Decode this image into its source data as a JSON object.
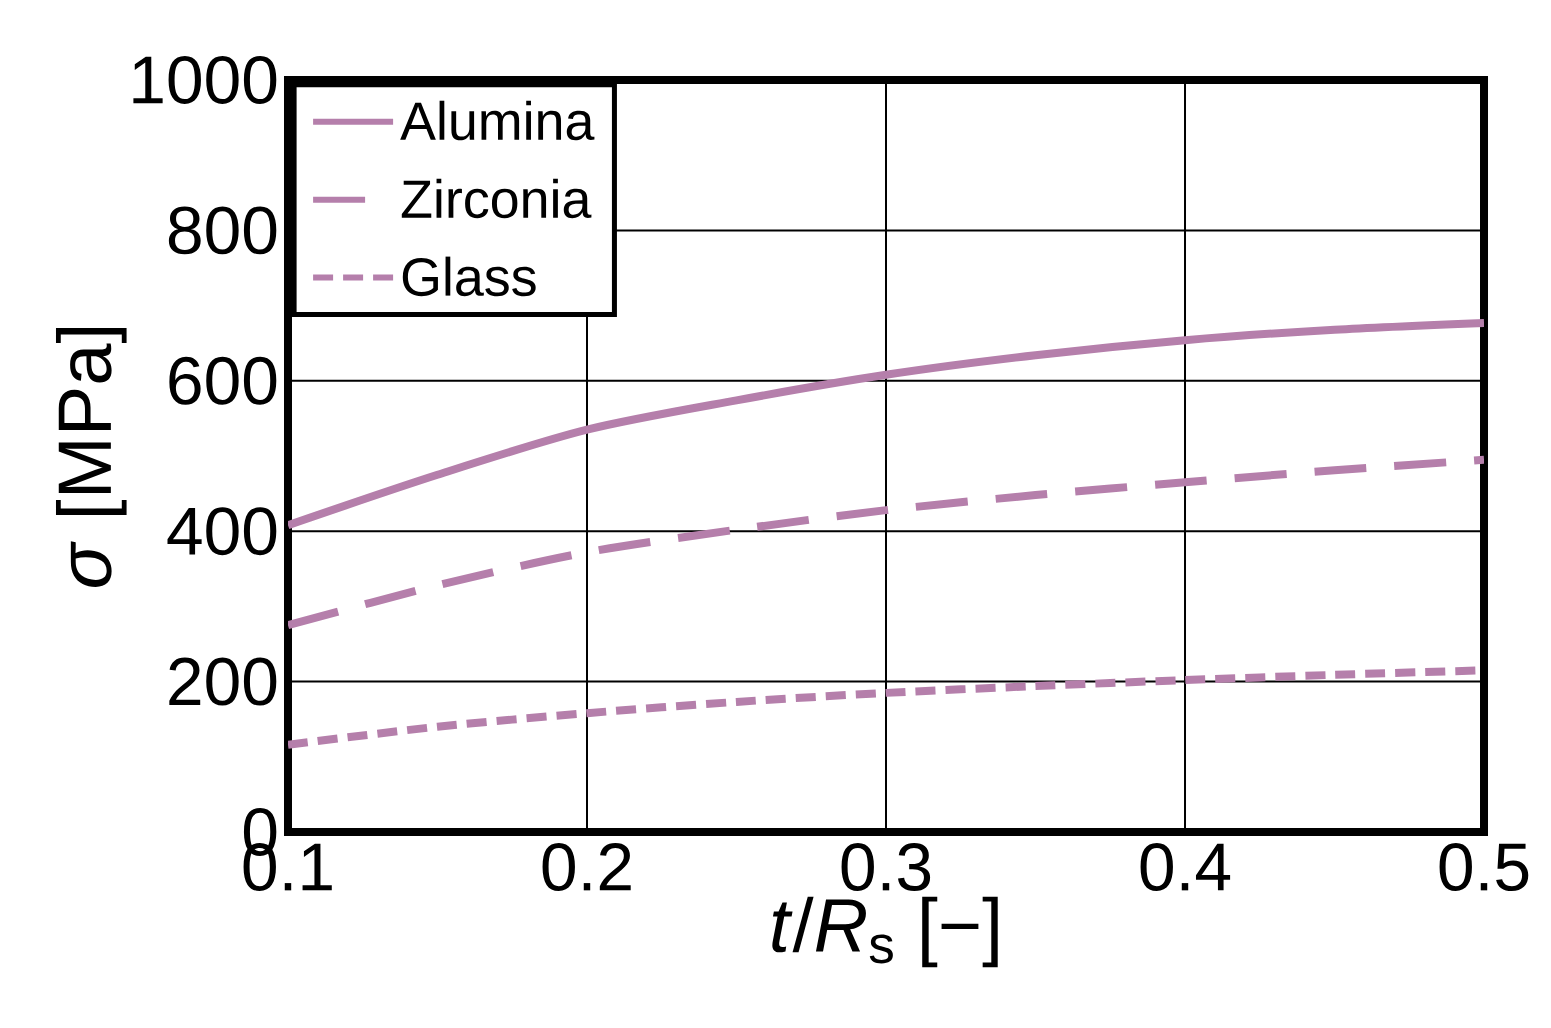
{
  "chart_data": {
    "type": "line",
    "xlabel": "*t*/*R*$_{s}$ [−]",
    "ylabel": "*σ* [MPa]",
    "x": [
      0.1,
      0.15,
      0.2,
      0.25,
      0.3,
      0.35,
      0.4,
      0.45,
      0.5
    ],
    "series": [
      {
        "name": "Alumina",
        "color": "#b57fab",
        "line_style": "solid",
        "values": [
          408,
          475,
          535,
          574,
          608,
          634,
          654,
          668,
          677
        ]
      },
      {
        "name": "Zirconia",
        "color": "#b57fab",
        "line_style": "dashed",
        "values": [
          275,
          328,
          372,
          402,
          428,
          448,
          465,
          481,
          495
        ]
      },
      {
        "name": "Glass",
        "color": "#b57fab",
        "line_style": "dotted",
        "values": [
          116,
          140,
          158,
          173,
          185,
          194,
          202,
          209,
          215
        ]
      }
    ],
    "xlim": [
      0.1,
      0.5
    ],
    "ylim": [
      0,
      1000
    ],
    "xticks": [
      0.1,
      0.2,
      0.3,
      0.4,
      0.5
    ],
    "yticks": [
      0,
      200,
      400,
      600,
      800,
      1000
    ],
    "grid": true,
    "legend": "top left",
    "marker": "none"
  }
}
